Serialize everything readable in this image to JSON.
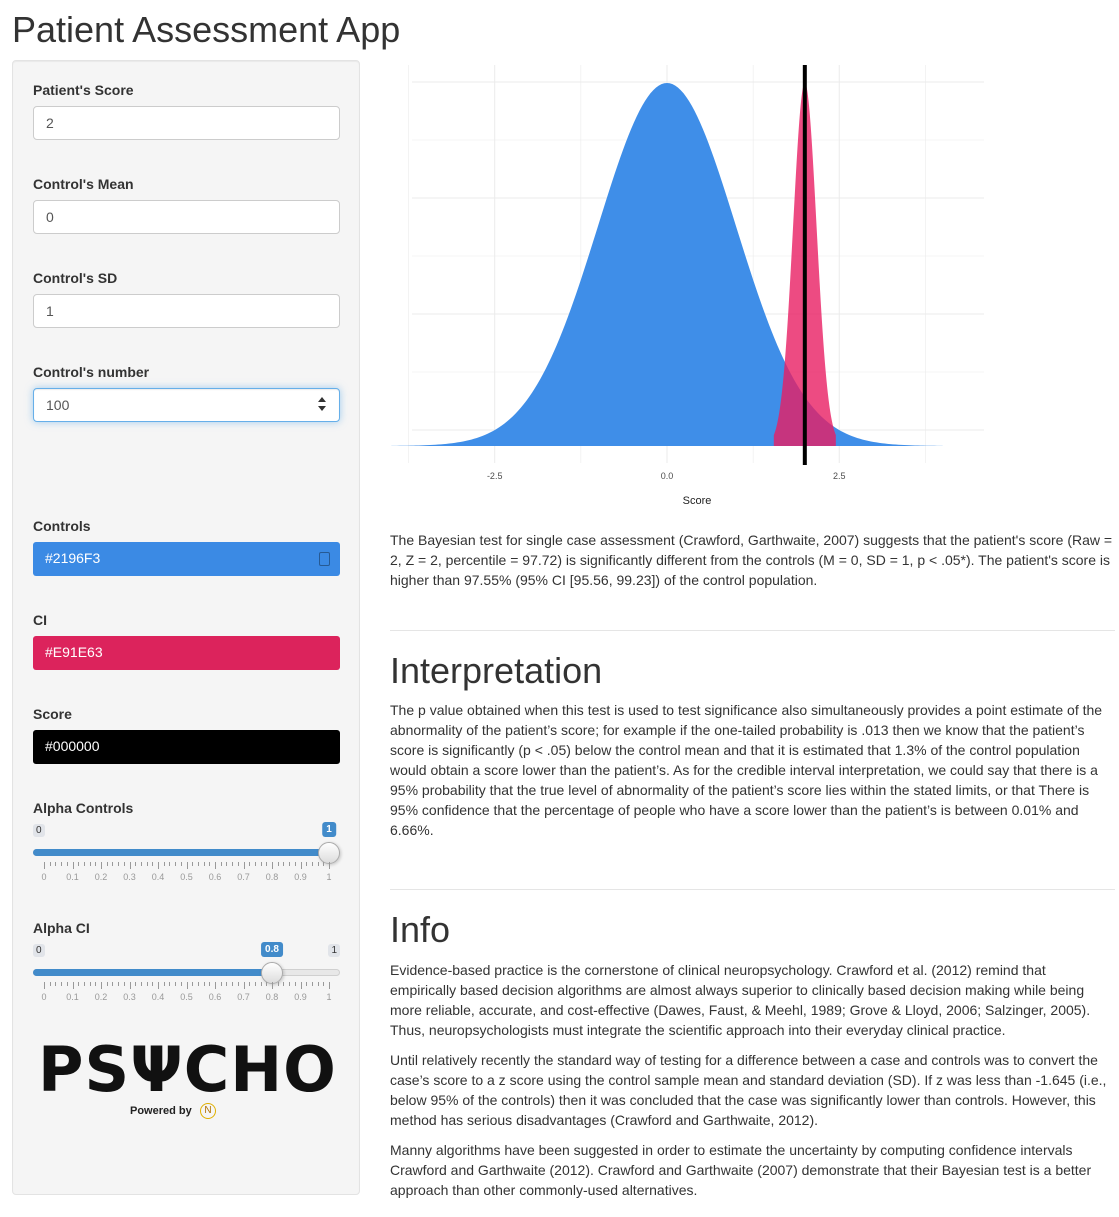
{
  "app": {
    "title": "Patient Assessment App"
  },
  "sidebar": {
    "patient_score": {
      "label": "Patient's Score",
      "value": "2"
    },
    "control_mean": {
      "label": "Control's Mean",
      "value": "0"
    },
    "control_sd": {
      "label": "Control's SD",
      "value": "1"
    },
    "control_n": {
      "label": "Control's number",
      "value": "100"
    },
    "controls_color": {
      "label": "Controls",
      "value": "#2196F3",
      "color": "#3b8ae4",
      "text_color": "#ffffff"
    },
    "ci_color": {
      "label": "CI",
      "value": "#E91E63",
      "color": "#dc235c",
      "text_color": "#ffffff"
    },
    "score_color": {
      "label": "Score",
      "value": "#000000",
      "color": "#000000",
      "text_color": "#ffffff"
    },
    "alpha_controls": {
      "label": "Alpha Controls",
      "min_label": "0",
      "max_label": "1",
      "value_label": "1",
      "value": 1.0,
      "min": 0,
      "max": 1,
      "ticks": [
        "0",
        "0.1",
        "0.2",
        "0.3",
        "0.4",
        "0.5",
        "0.6",
        "0.7",
        "0.8",
        "0.9",
        "1"
      ]
    },
    "alpha_ci": {
      "label": "Alpha CI",
      "min_label": "0",
      "max_label": "1",
      "value_label": "0.8",
      "value": 0.8,
      "min": 0,
      "max": 1,
      "ticks": [
        "0",
        "0.1",
        "0.2",
        "0.3",
        "0.4",
        "0.5",
        "0.6",
        "0.7",
        "0.8",
        "0.9",
        "1"
      ]
    },
    "logo": {
      "text": "PSΨCHO",
      "powered": "Powered by",
      "badge": "N"
    }
  },
  "chart_data": {
    "type": "area",
    "xlabel": "Score",
    "x_ticks": [
      -2.5,
      0.0,
      2.5
    ],
    "x_tick_labels": [
      "-2.5",
      "0.0",
      "2.5"
    ],
    "xlim": [
      -3.7,
      4.6
    ],
    "grid": true,
    "series": [
      {
        "kind": "normal-density",
        "mean": 0,
        "sd": 1,
        "x_range": [
          -4,
          4
        ],
        "color": "#2196F3"
      },
      {
        "kind": "credible-interval-density",
        "mean": 2.0,
        "sd": 0.17,
        "x_range": [
          1.55,
          2.45
        ],
        "color": "#E91E63",
        "alpha": 0.8
      }
    ],
    "score_line": {
      "x": 2.0,
      "color": "#000000"
    }
  },
  "results": {
    "text": "The Bayesian test for single case assessment (Crawford, Garthwaite, 2007) suggests that the patient's score (Raw = 2, Z = 2, percentile = 97.72) is significantly different from the controls (M = 0, SD = 1, p < .05*). The patient's score is higher than 97.55% (95% CI [95.56, 99.23]) of the control population."
  },
  "interpretation": {
    "title": "Interpretation",
    "text": "The p value obtained when this test is used to test significance also simultaneously provides a point estimate of the abnormality of the patient’s score; for example if the one-tailed probability is .013 then we know that the patient’s score is significantly (p < .05) below the control mean and that it is estimated that 1.3% of the control population would obtain a score lower than the patient’s. As for the credible interval interpretation, we could say that there is a 95% probability that the true level of abnormality of the patient’s score lies within the stated limits, or that There is 95% confidence that the percentage of people who have a score lower than the patient’s is between 0.01% and 6.66%."
  },
  "info": {
    "title": "Info",
    "p1": "Evidence-based practice is the cornerstone of clinical neuropsychology. Crawford et al. (2012) remind that empirically based decision algorithms are almost always superior to clinically based decision making while being more reliable, accurate, and cost-effective (Dawes, Faust, & Meehl, 1989; Grove & Lloyd, 2006; Salzinger, 2005). Thus, neuropsychologists must integrate the scientific approach into their everyday clinical practice.",
    "p2": "Until relatively recently the standard way of testing for a difference between a case and controls was to convert the case’s score to a z score using the control sample mean and standard deviation (SD). If z was less than -1.645 (i.e., below 95% of the controls) then it was concluded that the case was significantly lower than controls. However, this method has serious disadvantages (Crawford and Garthwaite, 2012).",
    "p3": "Manny algorithms have been suggested in order to estimate the uncertainty by computing confidence intervals Crawford and Garthwaite (2012). Crawford and Garthwaite (2007) demonstrate that their Bayesian test is a better approach than other commonly-used alternatives."
  }
}
